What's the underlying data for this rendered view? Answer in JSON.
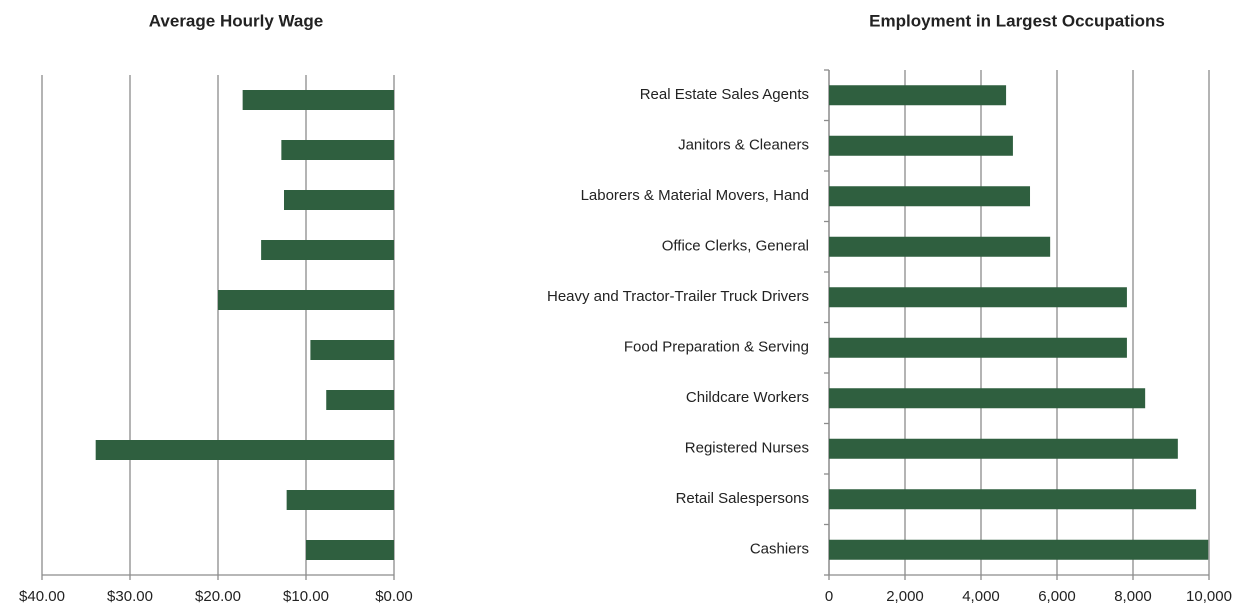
{
  "chart_data": [
    {
      "type": "bar",
      "orientation": "horizontal",
      "title": "Average Hourly Wage",
      "categories": [
        null,
        null,
        null,
        null,
        null,
        null,
        null,
        null,
        null,
        null
      ],
      "values": [
        17.2,
        12.8,
        12.5,
        15.1,
        20.0,
        9.5,
        7.7,
        33.9,
        12.2,
        10.0
      ],
      "color": "#2f5f3f",
      "x_reversed": true,
      "grid": true,
      "xlim": [
        0,
        40
      ],
      "xticks": [
        {
          "value": 40,
          "label": "$40.00"
        },
        {
          "value": 30,
          "label": "$30.00"
        },
        {
          "value": 20,
          "label": "$20.00"
        },
        {
          "value": 10,
          "label": "$10.00"
        },
        {
          "value": 0,
          "label": "$0.00"
        }
      ]
    },
    {
      "type": "bar",
      "orientation": "horizontal",
      "title": "Employment in Largest Occupations",
      "categories": [
        "Real Estate Sales Agents",
        "Janitors & Cleaners",
        "Laborers & Material Movers, Hand",
        "Office Clerks, General",
        "Heavy and Tractor-Trailer Truck Drivers",
        "Food Preparation & Serving",
        "Childcare Workers",
        "Registered Nurses",
        "Retail Salespersons",
        "Cashiers"
      ],
      "values": [
        4660,
        4840,
        5290,
        5820,
        7840,
        7840,
        8320,
        9180,
        9660,
        9980
      ],
      "color": "#2f5f3f",
      "x_reversed": false,
      "grid": true,
      "xlim": [
        0,
        10000
      ],
      "xticks": [
        0,
        {
          "value": 2000,
          "label": "2,000"
        },
        {
          "value": 4000,
          "label": "4,000"
        },
        {
          "value": 6000,
          "label": "6,000"
        },
        {
          "value": 8000,
          "label": "8,000"
        },
        {
          "value": 10000,
          "label": "10,000"
        }
      ]
    }
  ]
}
